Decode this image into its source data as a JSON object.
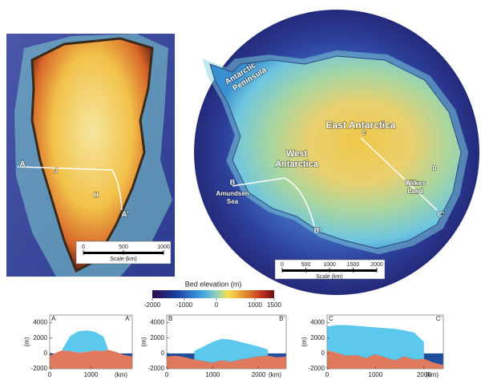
{
  "greenland_map": {
    "labels": [
      "A",
      "A'",
      "J",
      "H"
    ],
    "scale": {
      "ticks": [
        0,
        500,
        1000
      ],
      "label": "Scale (km)"
    }
  },
  "antarctica_map": {
    "labels": [
      [
        "Antarctic",
        "Peninsula"
      ],
      [
        "East Antarctica"
      ],
      [
        "West",
        "Antarctica"
      ],
      [
        "B"
      ],
      [
        "Amundsen",
        "Sea"
      ],
      [
        "B'"
      ],
      [
        "C"
      ],
      [
        "C'"
      ],
      [
        "Wilkes",
        "Land"
      ],
      [
        "D"
      ]
    ],
    "scale": {
      "ticks": [
        0,
        500,
        1000,
        1500,
        2000
      ],
      "label": "Scale (km)"
    }
  },
  "colorbar": {
    "title": "Bed elevation (m)",
    "range": [
      -2000,
      1500
    ],
    "ticks": [
      -2000,
      -1000,
      0,
      1000,
      1500
    ]
  },
  "chart_data": [
    {
      "type": "area",
      "label_left": "A",
      "label_right": "A'",
      "ylabel": "(m)",
      "xlabel": "(km)",
      "x": [
        0,
        200,
        300,
        500,
        700,
        900,
        1100,
        1300,
        1400,
        1600,
        1800,
        2000
      ],
      "series": [
        {
          "color": "#e07a5f",
          "values": [
            -300,
            200,
            400,
            300,
            100,
            200,
            400,
            300,
            500,
            200,
            -200,
            -400
          ]
        },
        {
          "color": "#5bc8ec",
          "values": [
            null,
            null,
            500,
            2300,
            2900,
            3000,
            2800,
            2200,
            800,
            null,
            null,
            null
          ]
        }
      ],
      "sea_color": "#1f4e9c",
      "xlim": [
        0,
        2000
      ],
      "ylim": [
        -2000,
        5000
      ],
      "xticks": [
        0,
        1000
      ],
      "yticks": [
        -2000,
        0,
        2000,
        4000
      ]
    },
    {
      "type": "area",
      "label_left": "B",
      "label_right": "B'",
      "ylabel": "(m)",
      "xlabel": "(km)",
      "x": [
        0,
        200,
        400,
        600,
        800,
        1000,
        1200,
        1400,
        1600,
        1800,
        2000,
        2200,
        2400,
        2600
      ],
      "series": [
        {
          "color": "#e07a5f",
          "values": [
            -400,
            -300,
            -500,
            -800,
            -1000,
            -1200,
            -900,
            -1100,
            -800,
            -600,
            -400,
            -300,
            -500,
            -400
          ]
        },
        {
          "color": "#5bc8ec",
          "values": [
            null,
            null,
            null,
            300,
            900,
            1500,
            1900,
            1800,
            1500,
            1200,
            900,
            500,
            null,
            null
          ]
        }
      ],
      "sea_color": "#1f4e9c",
      "xlim": [
        0,
        2600
      ],
      "ylim": [
        -2000,
        5000
      ],
      "xticks": [
        0,
        1000,
        2000
      ],
      "yticks": [
        -2000,
        0,
        2000,
        4000
      ]
    },
    {
      "type": "area",
      "label_left": "C",
      "label_right": "C'",
      "ylabel": "(m)",
      "xlabel": "(km)",
      "x": [
        0,
        200,
        400,
        600,
        800,
        1000,
        1200,
        1400,
        1600,
        1800,
        2000,
        2200,
        2400
      ],
      "series": [
        {
          "color": "#e07a5f",
          "values": [
            400,
            100,
            -300,
            -200,
            -600,
            -100,
            -500,
            -900,
            -400,
            -800,
            -700,
            -1200,
            -1500
          ]
        },
        {
          "color": "#5bc8ec",
          "values": [
            3500,
            3700,
            3700,
            3600,
            3500,
            3400,
            3300,
            3200,
            3000,
            2700,
            1500,
            null,
            null
          ]
        }
      ],
      "sea_color": "#1f4e9c",
      "xlim": [
        0,
        2400
      ],
      "ylim": [
        -2000,
        5000
      ],
      "xticks": [
        0,
        1000,
        2000
      ],
      "yticks": [
        -2000,
        0,
        2000,
        4000
      ]
    }
  ]
}
